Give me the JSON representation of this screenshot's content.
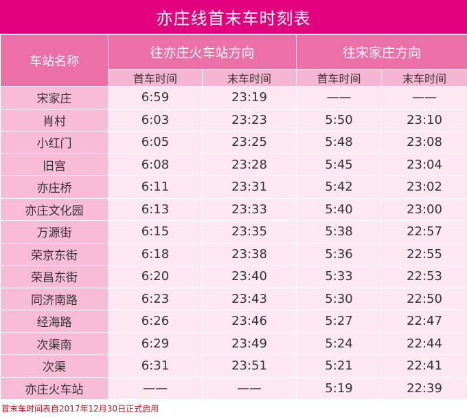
{
  "title": "亦庄线首末车时刻表",
  "headers": {
    "station": "车站名称",
    "dir1": "往亦庄火车站方向",
    "dir2": "往宋家庄方向",
    "first": "首车时间",
    "last": "末车时间"
  },
  "rows": [
    {
      "station": "宋家庄",
      "d1_first": "6:59",
      "d1_last": "23:19",
      "d2_first": "——",
      "d2_last": "——"
    },
    {
      "station": "肖村",
      "d1_first": "6:03",
      "d1_last": "23:23",
      "d2_first": "5:50",
      "d2_last": "23:10"
    },
    {
      "station": "小红门",
      "d1_first": "6:05",
      "d1_last": "23:25",
      "d2_first": "5:48",
      "d2_last": "23:08"
    },
    {
      "station": "旧宫",
      "d1_first": "6:08",
      "d1_last": "23:28",
      "d2_first": "5:45",
      "d2_last": "23:04"
    },
    {
      "station": "亦庄桥",
      "d1_first": "6:11",
      "d1_last": "23:31",
      "d2_first": "5:42",
      "d2_last": "23:02"
    },
    {
      "station": "亦庄文化园",
      "d1_first": "6:13",
      "d1_last": "23:33",
      "d2_first": "5:40",
      "d2_last": "23:00"
    },
    {
      "station": "万源街",
      "d1_first": "6:15",
      "d1_last": "23:35",
      "d2_first": "5:38",
      "d2_last": "22:57"
    },
    {
      "station": "荣京东街",
      "d1_first": "6:18",
      "d1_last": "23:38",
      "d2_first": "5:36",
      "d2_last": "22:55"
    },
    {
      "station": "荣昌东街",
      "d1_first": "6:20",
      "d1_last": "23:40",
      "d2_first": "5:33",
      "d2_last": "22:53"
    },
    {
      "station": "同济南路",
      "d1_first": "6:23",
      "d1_last": "23:43",
      "d2_first": "5:30",
      "d2_last": "22:50"
    },
    {
      "station": "经海路",
      "d1_first": "6:26",
      "d1_last": "23:46",
      "d2_first": "5:27",
      "d2_last": "22:47"
    },
    {
      "station": "次渠南",
      "d1_first": "6:29",
      "d1_last": "23:49",
      "d2_first": "5:24",
      "d2_last": "22:44"
    },
    {
      "station": "次渠",
      "d1_first": "6:31",
      "d1_last": "23:51",
      "d2_first": "5:21",
      "d2_last": "22:41"
    },
    {
      "station": "亦庄火车站",
      "d1_first": "——",
      "d1_last": "——",
      "d2_first": "5:19",
      "d2_last": "22:39"
    }
  ],
  "note": "首末车时间表自2017年12月30日正式启用",
  "colors": {
    "title_bg": "#e3007e",
    "header_bg": "#ec6fa8",
    "subheader_bg": "#f6b6d3",
    "station_bg": "#f8bcd6",
    "cell_bg": "#fde8f1",
    "note": "#e60012"
  }
}
